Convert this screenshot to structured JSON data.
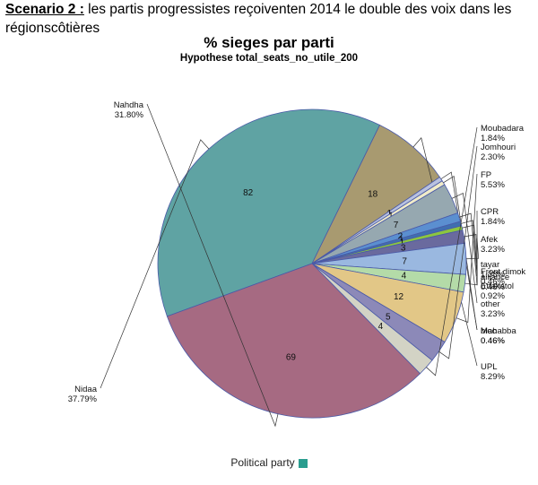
{
  "heading": {
    "lead": "Scenario 2 :",
    "rest": " les partis progressistes reçoiventen 2014 le double des voix dans les régionscôtières"
  },
  "chart_data": {
    "type": "pie",
    "title": "% sieges par parti",
    "subtitle": "Hypothese total_seats_no_utile_200",
    "legend_title": "Political party",
    "legend_color": "#2a9d8f",
    "legend_position": "bottom",
    "slices": [
      {
        "name": "Nidaa",
        "pct": "37.79%",
        "value": 82,
        "color": "#5fa3a3"
      },
      {
        "name": "UPL",
        "pct": "8.29%",
        "value": 18,
        "color": "#a89a70"
      },
      {
        "name": "bloc",
        "pct": "0.46%",
        "value": 1,
        "color": "#b9c2e0"
      },
      {
        "name": "Mahabba",
        "pct": "0.46%",
        "value": 1,
        "color": "#f0ebc8"
      },
      {
        "name": "other",
        "pct": "3.23%",
        "value": 7,
        "color": "#96a8b0"
      },
      {
        "name": "Ettakatol",
        "pct": "0.92%",
        "value": 2,
        "color": "#5b8fd0"
      },
      {
        "name": "alliance",
        "pct": "0.46%",
        "value": 1,
        "color": "#3f6fb0"
      },
      {
        "name": "Front dimok",
        "pct": "0.46%",
        "value": 1,
        "color": "#8cc63f"
      },
      {
        "name": "tayar",
        "pct": "1.38%",
        "value": 3,
        "color": "#6a6a9e"
      },
      {
        "name": "Afek",
        "pct": "3.23%",
        "value": 7,
        "color": "#9ab8e0"
      },
      {
        "name": "CPR",
        "pct": "1.84%",
        "value": 4,
        "color": "#b4dba8"
      },
      {
        "name": "FP",
        "pct": "5.53%",
        "value": 12,
        "color": "#e2c787"
      },
      {
        "name": "Jomhouri",
        "pct": "2.30%",
        "value": 5,
        "color": "#8c89b8"
      },
      {
        "name": "Moubadara",
        "pct": "1.84%",
        "value": 4,
        "color": "#d3d3c5"
      },
      {
        "name": "Nahdha",
        "pct": "31.80%",
        "value": 69,
        "color": "#a66a82"
      }
    ]
  }
}
